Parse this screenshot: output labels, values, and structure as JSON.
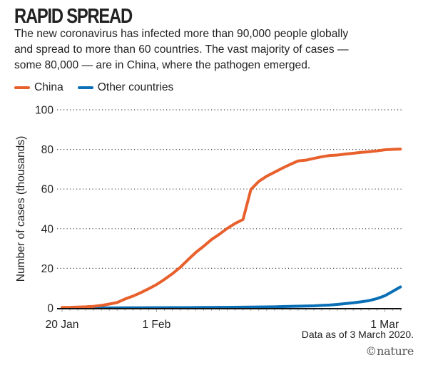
{
  "title": "RAPID SPREAD",
  "subtitle_lines": [
    "The new coronavirus has infected more than 90,000 people globally",
    "and spread to more than 60 countries. The vast majority of cases —",
    "some 80,000 — are in China, where the pathogen emerged."
  ],
  "note": "Data as of 3 March 2020.",
  "logo": "©nature",
  "chart_data": {
    "type": "line",
    "ylabel": "Number of cases (thousands)",
    "xlabel": "",
    "ylim": [
      0,
      100
    ],
    "yticks": [
      0,
      20,
      40,
      60,
      80,
      100
    ],
    "xrange": [
      "20 Jan",
      "3 Mar"
    ],
    "xtick_labels": [
      {
        "day": 0,
        "label": "20 Jan"
      },
      {
        "day": 12,
        "label": "1 Feb"
      },
      {
        "day": 41,
        "label": "1 Mar"
      }
    ],
    "grid": "horizontal dotted",
    "legend": "top-left",
    "x_note": "daily values from 20 Jan to 3 Mar 2020",
    "series": [
      {
        "name": "China",
        "color": "#e8602c",
        "values": [
          0.28,
          0.31,
          0.44,
          0.57,
          0.83,
          1.29,
          1.98,
          2.74,
          4.52,
          5.97,
          7.71,
          9.69,
          11.79,
          14.38,
          17.21,
          20.44,
          24.32,
          28.02,
          31.16,
          34.55,
          37.2,
          40.17,
          42.64,
          44.65,
          59.8,
          63.85,
          66.49,
          68.5,
          70.55,
          72.44,
          74.19,
          74.58,
          75.47,
          76.29,
          76.94,
          77.15,
          77.66,
          78.06,
          78.5,
          78.82,
          79.25,
          79.82,
          80.03,
          80.15
        ]
      },
      {
        "name": "Other countries",
        "color": "#0a6fb5",
        "values": [
          0.0,
          0.0,
          0.01,
          0.01,
          0.02,
          0.03,
          0.05,
          0.06,
          0.07,
          0.08,
          0.1,
          0.12,
          0.14,
          0.15,
          0.16,
          0.18,
          0.2,
          0.22,
          0.25,
          0.28,
          0.3,
          0.32,
          0.36,
          0.4,
          0.45,
          0.5,
          0.55,
          0.6,
          0.7,
          0.8,
          0.9,
          1.0,
          1.1,
          1.3,
          1.5,
          1.8,
          2.2,
          2.6,
          3.1,
          3.7,
          4.7,
          6.1,
          8.3,
          10.6
        ]
      }
    ]
  }
}
